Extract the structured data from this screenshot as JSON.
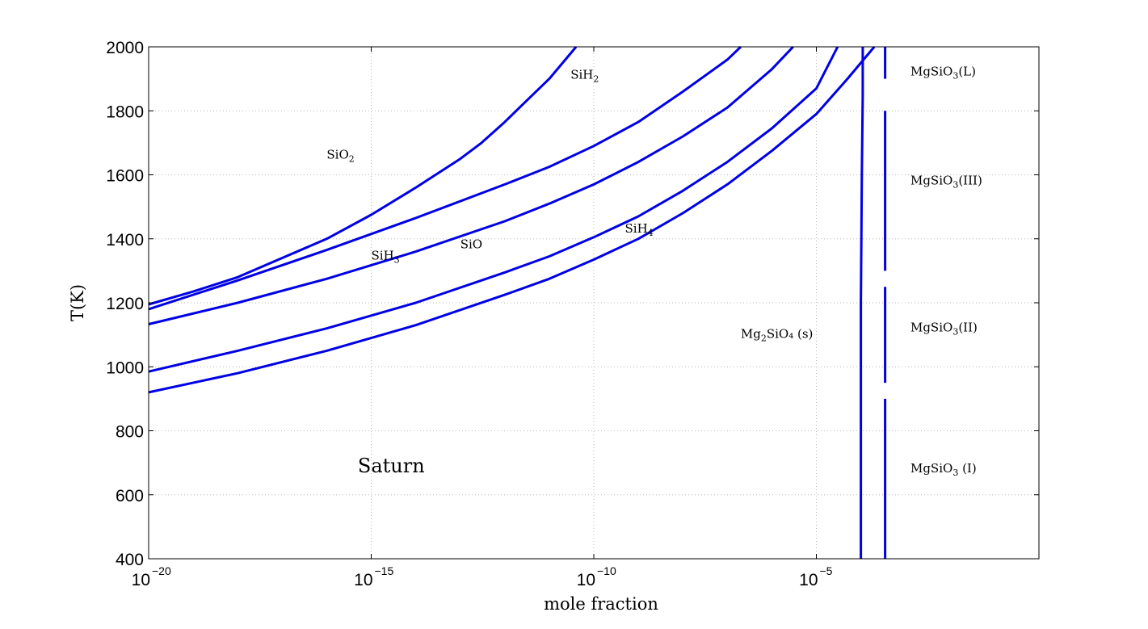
{
  "chart_data": {
    "type": "line",
    "title": "",
    "xlabel": "mole fraction",
    "ylabel": "T(K)",
    "xscale": "log",
    "xlim": [
      1e-20,
      1
    ],
    "ylim": [
      400,
      2000
    ],
    "grid": true,
    "line_color": "#0000e6",
    "y_ticks": [
      "400",
      "600",
      "800",
      "1000",
      "1200",
      "1400",
      "1600",
      "1800",
      "2000"
    ],
    "x_ticks": [
      {
        "base": "10",
        "exp": "−20",
        "value": 1e-20
      },
      {
        "base": "10",
        "exp": "−15",
        "value": 1e-15
      },
      {
        "base": "10",
        "exp": "−10",
        "value": 1e-10
      },
      {
        "base": "10",
        "exp": "−5",
        "value": 1e-05
      }
    ],
    "series": [
      {
        "id": "sio2",
        "points": [
          [
            1e-20,
            1195
          ],
          [
            1e-19,
            1235
          ],
          [
            1e-18,
            1280
          ],
          [
            1e-17,
            1340
          ],
          [
            1e-16,
            1400
          ],
          [
            1e-15,
            1475
          ],
          [
            1e-14,
            1560
          ],
          [
            1e-13,
            1650
          ],
          [
            3e-13,
            1700
          ],
          [
            1e-12,
            1765
          ],
          [
            3e-12,
            1830
          ],
          [
            1e-11,
            1900
          ],
          [
            4e-11,
            2000
          ]
        ]
      },
      {
        "id": "sih2",
        "points": [
          [
            1e-20,
            1180
          ],
          [
            1e-18,
            1270
          ],
          [
            1e-16,
            1365
          ],
          [
            1e-14,
            1465
          ],
          [
            1e-12,
            1570
          ],
          [
            1e-11,
            1625
          ],
          [
            1e-10,
            1690
          ],
          [
            1e-09,
            1765
          ],
          [
            1e-08,
            1860
          ],
          [
            1e-07,
            1960
          ],
          [
            2e-07,
            2000
          ]
        ]
      },
      {
        "id": "sih3",
        "points": [
          [
            1e-20,
            1133
          ],
          [
            1e-18,
            1200
          ],
          [
            1e-16,
            1275
          ],
          [
            1e-14,
            1360
          ],
          [
            1e-12,
            1455
          ],
          [
            1e-11,
            1510
          ],
          [
            1e-10,
            1570
          ],
          [
            1e-09,
            1640
          ],
          [
            1e-08,
            1720
          ],
          [
            1e-07,
            1810
          ],
          [
            1e-06,
            1930
          ],
          [
            3e-06,
            2000
          ]
        ]
      },
      {
        "id": "sio",
        "points": [
          [
            1e-20,
            985
          ],
          [
            1e-18,
            1050
          ],
          [
            1e-16,
            1120
          ],
          [
            1e-14,
            1200
          ],
          [
            1e-12,
            1295
          ],
          [
            1e-11,
            1345
          ],
          [
            1e-10,
            1405
          ],
          [
            1e-09,
            1470
          ],
          [
            1e-08,
            1550
          ],
          [
            1e-07,
            1640
          ],
          [
            1e-06,
            1745
          ],
          [
            1e-05,
            1870
          ],
          [
            3e-05,
            2000
          ]
        ]
      },
      {
        "id": "sih4",
        "points": [
          [
            1e-20,
            920
          ],
          [
            1e-18,
            980
          ],
          [
            1e-16,
            1050
          ],
          [
            1e-14,
            1130
          ],
          [
            1e-12,
            1225
          ],
          [
            1e-11,
            1275
          ],
          [
            1e-10,
            1335
          ],
          [
            1e-09,
            1400
          ],
          [
            1e-08,
            1480
          ],
          [
            1e-07,
            1570
          ],
          [
            1e-06,
            1675
          ],
          [
            1e-05,
            1790
          ],
          [
            5e-05,
            1900
          ],
          [
            0.0002,
            2000
          ]
        ]
      },
      {
        "id": "mg2sio4",
        "points": [
          [
            0.0001,
            400
          ],
          [
            0.0001,
            1200
          ],
          [
            0.000105,
            1600
          ],
          [
            0.00011,
            1850
          ],
          [
            0.00011,
            2000
          ]
        ]
      },
      {
        "id": "mgsio3-I",
        "points": [
          [
            0.00035,
            400
          ],
          [
            0.00035,
            900
          ]
        ]
      },
      {
        "id": "mgsio3-II",
        "points": [
          [
            0.00035,
            950
          ],
          [
            0.00035,
            1250
          ]
        ]
      },
      {
        "id": "mgsio3-III",
        "points": [
          [
            0.00035,
            1300
          ],
          [
            0.00035,
            1800
          ]
        ]
      },
      {
        "id": "mgsio3-L",
        "points": [
          [
            0.00035,
            1900
          ],
          [
            0.00035,
            2000
          ]
        ]
      }
    ],
    "annotations": [
      {
        "id": "sio2",
        "text": "SiO",
        "sub": "2",
        "tail": "",
        "x": 1e-16,
        "y": 1650
      },
      {
        "id": "sih2",
        "text": "SiH",
        "sub": "2",
        "tail": "",
        "x": 3e-11,
        "y": 1900
      },
      {
        "id": "sio",
        "text": "SiO",
        "sub": "",
        "tail": "",
        "x": 1e-13,
        "y": 1370
      },
      {
        "id": "sih4",
        "text": "SiH",
        "sub": "4",
        "tail": "",
        "x": 5e-10,
        "y": 1420
      },
      {
        "id": "sih3",
        "text": "SiH",
        "sub": "3",
        "tail": "",
        "x": 1e-15,
        "y": 1335
      },
      {
        "id": "mg2sio4",
        "text": "Mg",
        "sub": "2",
        "tail": "SiO₄ (s)",
        "x": 2e-07,
        "y": 1090
      },
      {
        "id": "mgsio3-L",
        "text": "MgSiO",
        "sub": "3",
        "tail": "(L)",
        "x": 0.0013,
        "y": 1910
      },
      {
        "id": "mgsio3-III",
        "text": "MgSiO",
        "sub": "3",
        "tail": "(III)",
        "x": 0.0013,
        "y": 1570
      },
      {
        "id": "mgsio3-II",
        "text": "MgSiO",
        "sub": "3",
        "tail": "(II)",
        "x": 0.0013,
        "y": 1110
      },
      {
        "id": "mgsio3-I",
        "text": "MgSiO",
        "sub": "3",
        "tail": " (I)",
        "x": 0.0013,
        "y": 670
      },
      {
        "id": "saturn",
        "text": "Saturn",
        "sub": "",
        "tail": "",
        "x": 5e-16,
        "y": 670,
        "big": true
      }
    ]
  }
}
